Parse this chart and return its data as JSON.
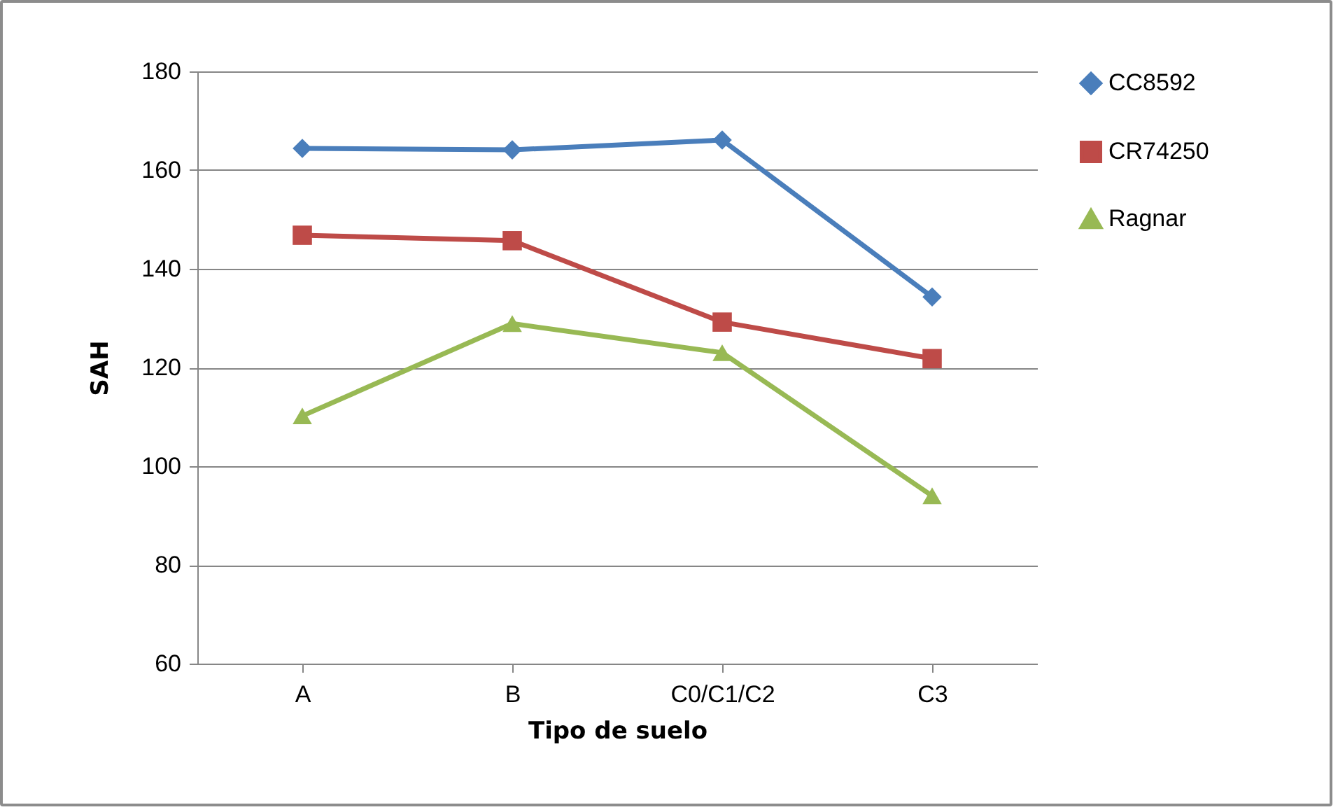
{
  "chart_data": {
    "type": "line",
    "xlabel": "Tipo de suelo",
    "ylabel": "SAH",
    "categories": [
      "A",
      "B",
      "C0/C1/C2",
      "C3"
    ],
    "series": [
      {
        "name": "CC8592",
        "color": "#4a7ebb",
        "marker": "diamond",
        "values": [
          164.4,
          164.1,
          166.1,
          134.3
        ]
      },
      {
        "name": "CR74250",
        "color": "#be4b48",
        "marker": "square",
        "values": [
          146.8,
          145.7,
          129.2,
          121.8
        ]
      },
      {
        "name": "Ragnar",
        "color": "#98b954",
        "marker": "triangle",
        "values": [
          110.2,
          128.9,
          123,
          94
        ]
      }
    ],
    "ylim": [
      60,
      180
    ],
    "yticks": [
      60,
      80,
      100,
      120,
      140,
      160,
      180
    ],
    "grid": "y",
    "legend": "right",
    "line_style": "solid"
  }
}
